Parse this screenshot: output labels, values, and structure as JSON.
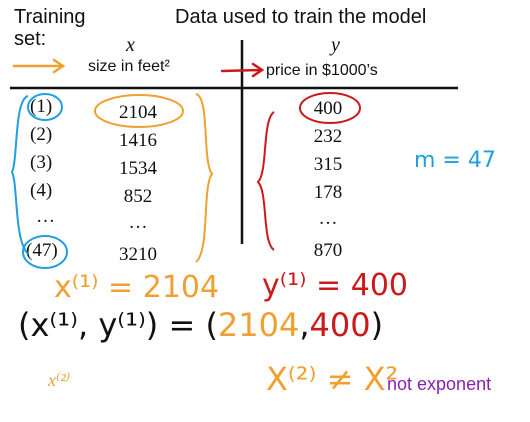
{
  "header": {
    "training_set": "Training\nset:",
    "data_used": "Data used to train the model"
  },
  "columns": {
    "x_symbol": "x",
    "x_label": "size in feet²",
    "y_symbol": "y",
    "y_label": "price in $1000’s"
  },
  "rows": [
    {
      "index": "(1)",
      "size": "2104",
      "price": "400"
    },
    {
      "index": "(2)",
      "size": "1416",
      "price": "232"
    },
    {
      "index": "(3)",
      "size": "1534",
      "price": "315"
    },
    {
      "index": "(4)",
      "size": "852",
      "price": "178"
    },
    {
      "index": "…",
      "size": "…",
      "price": "…"
    },
    {
      "index": "(47)",
      "size": "3210",
      "price": "870"
    }
  ],
  "annotations": {
    "m_count": "m = 47",
    "x1_eq": "x⁽¹⁾ = 2104",
    "y1_eq": "y⁽¹⁾ = 400",
    "pair_lhs": "(x⁽¹⁾, y⁽¹⁾) = (",
    "pair_a": "2104",
    "pair_comma": ",",
    "pair_b": "400",
    "pair_close": ")",
    "x2": "x⁽²⁾",
    "x2_neq": "X⁽²⁾ ≠ X²",
    "not_exponent": "not exponent"
  },
  "colors": {
    "orange": "#f0a030",
    "red": "#cc1a1a",
    "blue": "#1f9fe0",
    "purple": "#8a1fb0"
  }
}
